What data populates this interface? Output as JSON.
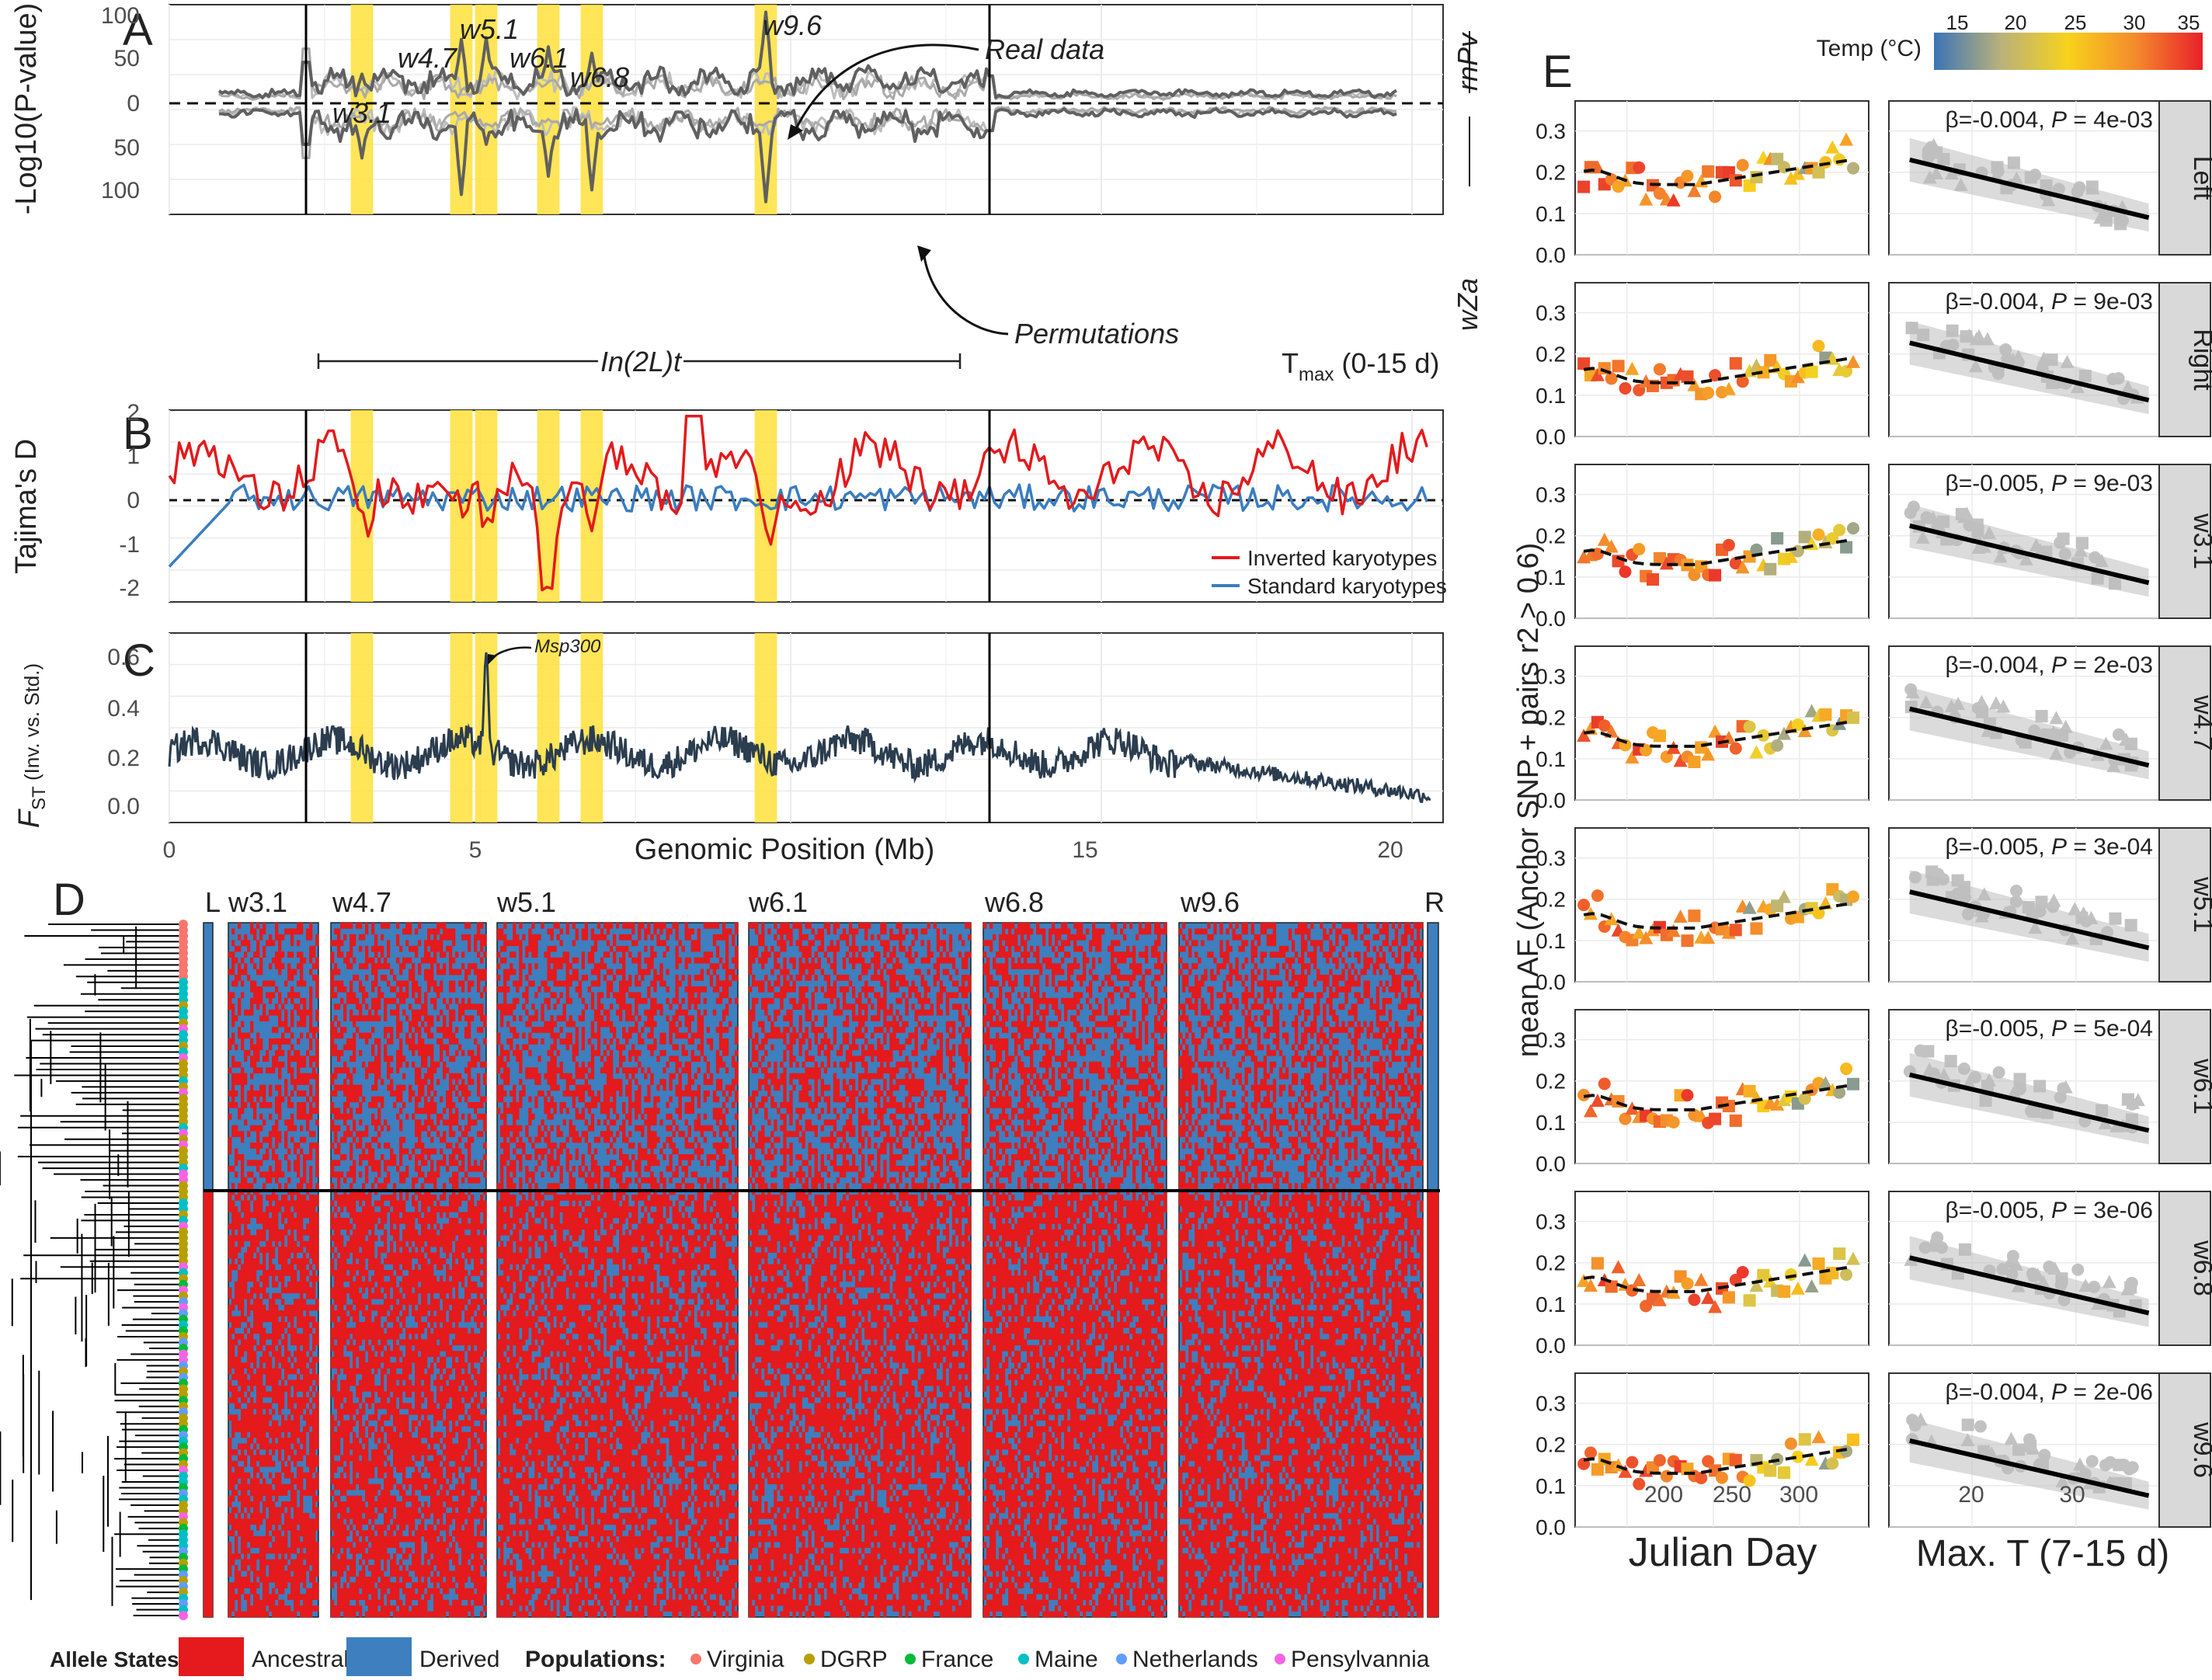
{
  "panels": {
    "A": {
      "letter": "A",
      "ylabel": "-Log10(P-value)",
      "yticks": [
        "100",
        "50",
        "0",
        "50",
        "100"
      ],
      "window_labels": [
        "w3.1",
        "w4.7",
        "w5.1",
        "w6.1",
        "w6.8",
        "w9.6"
      ],
      "annot_real": "Real data",
      "annot_perm": "Permutations",
      "inversion_label": "In(2L)t",
      "right_top": "rnPv",
      "right_bottom": "wZa",
      "tmax": "T",
      "tmax_sub": "max",
      "tmax_rest": " (0-15 d)"
    },
    "B": {
      "letter": "B",
      "ylabel": "Tajima's D",
      "yticks": [
        "2",
        "1",
        "0",
        "-1",
        "-2"
      ],
      "legend": [
        "Inverted karyotypes",
        "Standard karyotypes"
      ],
      "colors": {
        "inverted": "#e31a1c",
        "standard": "#3a7dbf"
      }
    },
    "C": {
      "letter": "C",
      "ylabel": "F",
      "ylabel_sub": "ST",
      "ylabel_rest": " (Inv. vs. Std.)",
      "yticks": [
        "0.6",
        "0.4",
        "0.2",
        "0.0"
      ],
      "annotation": "Msp300",
      "xlabel": "Genomic Position (Mb)",
      "xticks": [
        "0",
        "5",
        "15",
        "20"
      ]
    },
    "D": {
      "letter": "D",
      "block_labels": [
        "L",
        "w3.1",
        "w4.7",
        "w5.1",
        "w6.1",
        "w6.8",
        "w9.6",
        "R"
      ],
      "legend_allele_title": "Allele States:",
      "allele_states": [
        "Ancestral",
        "Derived"
      ],
      "legend_pop_title": "Populations:",
      "populations": [
        {
          "name": "Virginia",
          "color": "#f8766d"
        },
        {
          "name": "DGRP",
          "color": "#b79f00"
        },
        {
          "name": "France",
          "color": "#00ba38"
        },
        {
          "name": "Maine",
          "color": "#00bfc4"
        },
        {
          "name": "Netherlands",
          "color": "#619cff"
        },
        {
          "name": "Pensylvannia",
          "color": "#f564e3"
        }
      ],
      "colors": {
        "ancestral": "#e41a1c",
        "derived": "#3d7fbf"
      }
    },
    "E": {
      "letter": "E",
      "ylabel": "mean AF (Anchor SNP + pairs r2 > 0.6)",
      "xlabel_left": "Julian Day",
      "xlabel_right": "Max. T (7-15 d)",
      "left_xticks": [
        "200",
        "250",
        "300"
      ],
      "right_xticks": [
        "20",
        "30"
      ],
      "temp_title": "Temp (°C)",
      "temp_ticks": [
        "15",
        "20",
        "25",
        "30",
        "35"
      ],
      "facets": [
        {
          "strip": "Left",
          "beta": "β=-0.004, ",
          "p": "4e-03",
          "yticks": [
            "0.3",
            "0.2",
            "0.1",
            "0.0"
          ]
        },
        {
          "strip": "Right",
          "beta": "β=-0.004, ",
          "p": "9e-03",
          "yticks": [
            "0.3",
            "0.2",
            "0.1",
            "0.0"
          ]
        },
        {
          "strip": "w3.1",
          "beta": "β=-0.005, ",
          "p": "9e-03",
          "yticks": [
            "0.3",
            "0.2",
            "0.1",
            "0.0"
          ]
        },
        {
          "strip": "w4.7",
          "beta": "β=-0.004, ",
          "p": "2e-03",
          "yticks": [
            "0.3",
            "0.2",
            "0.1",
            "0.0"
          ]
        },
        {
          "strip": "w5.1",
          "beta": "β=-0.005, ",
          "p": "3e-04",
          "yticks": [
            "0.3",
            "0.2",
            "0.1",
            "0.0"
          ]
        },
        {
          "strip": "w6.1",
          "beta": "β=-0.005, ",
          "p": "5e-04",
          "yticks": [
            "0.3",
            "0.2",
            "0.1",
            "0.0"
          ]
        },
        {
          "strip": "w6.8",
          "beta": "β=-0.005, ",
          "p": "3e-06",
          "yticks": [
            "0.3",
            "0.2",
            "0.1",
            "0.0"
          ]
        },
        {
          "strip": "w9.6",
          "beta": "β=-0.004, ",
          "p": "2e-06",
          "yticks": [
            "0.3",
            "0.2",
            "0.1",
            "0.0"
          ]
        }
      ],
      "p_label": "P",
      "p_eq": " = "
    }
  },
  "chart_data": [
    {
      "type": "line",
      "panel": "A",
      "xlabel": "Genomic Position (Mb)",
      "ylabel": "-Log10(P-value)",
      "ylim_top": [
        0,
        100
      ],
      "ylim_bottom": [
        0,
        100
      ],
      "xlim": [
        0,
        20.5
      ],
      "breakpoints_mb": [
        2.2,
        13.2
      ],
      "windows_mb": [
        3.1,
        4.7,
        5.1,
        6.1,
        6.8,
        9.6
      ],
      "peaks": [
        {
          "window": "w3.1",
          "rnPv": 32,
          "wZa": 60
        },
        {
          "window": "w4.7",
          "rnPv": 70,
          "wZa": 100
        },
        {
          "window": "w5.1",
          "rnPv": 72,
          "wZa": 45
        },
        {
          "window": "w6.1",
          "rnPv": 62,
          "wZa": 80
        },
        {
          "window": "w6.8",
          "rnPv": 55,
          "wZa": 95
        },
        {
          "window": "w9.6",
          "rnPv": 100,
          "wZa": 108
        }
      ],
      "series": [
        {
          "name": "Real data"
        },
        {
          "name": "Permutations"
        }
      ]
    },
    {
      "type": "line",
      "panel": "B",
      "ylabel": "Tajima's D",
      "ylim": [
        -2.2,
        2.1
      ],
      "series": [
        {
          "name": "Inverted karyotypes"
        },
        {
          "name": "Standard karyotypes"
        }
      ]
    },
    {
      "type": "line",
      "panel": "C",
      "ylabel": "FST (Inv. vs. Std.)",
      "ylim": [
        0,
        0.7
      ],
      "max_value": 0.62,
      "max_position_mb": 5.1
    },
    {
      "type": "heatmap",
      "panel": "D",
      "categories": [
        "Ancestral",
        "Derived"
      ]
    },
    {
      "type": "scatter",
      "panel": "E",
      "left_xlim": [
        170,
        340
      ],
      "right_xlim": [
        12,
        38
      ],
      "ylim": [
        0,
        0.35
      ]
    }
  ]
}
